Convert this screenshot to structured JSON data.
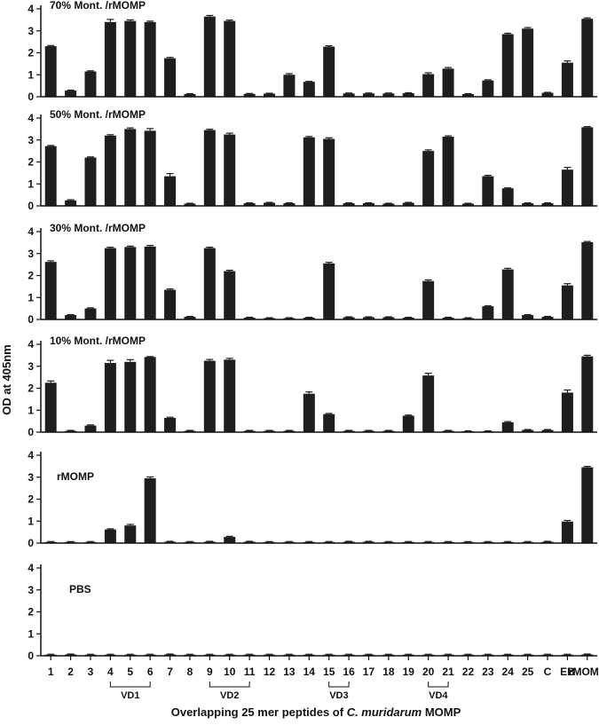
{
  "figure": {
    "ylabel": "OD at 405nm",
    "xlabel_prefix": "Overlapping 25 mer peptides of ",
    "xlabel_italic": "C. muridarum",
    "xlabel_suffix": " MOMP",
    "vd_groups": [
      {
        "label": "VD1",
        "from": "4",
        "to": "6"
      },
      {
        "label": "VD2",
        "from": "9",
        "to": "11"
      },
      {
        "label": "VD3",
        "from": "15",
        "to": "16"
      },
      {
        "label": "VD4",
        "from": "20",
        "to": "21"
      }
    ],
    "colors": {
      "bar": "#1e1e1e",
      "axis": "#111111",
      "panel_bg": "#ffffff"
    }
  },
  "chart_data": [
    {
      "type": "bar",
      "title": "70% Mont. /rMOMP",
      "categories": [
        "1",
        "2",
        "3",
        "4",
        "5",
        "6",
        "7",
        "8",
        "9",
        "10",
        "11",
        "12",
        "13",
        "14",
        "15",
        "16",
        "17",
        "18",
        "19",
        "20",
        "21",
        "22",
        "23",
        "24",
        "25",
        "C",
        "EB",
        "rMOMP"
      ],
      "values": [
        2.3,
        0.28,
        1.15,
        3.4,
        3.45,
        3.4,
        1.75,
        0.12,
        3.65,
        3.45,
        0.13,
        0.14,
        1.0,
        0.68,
        2.28,
        0.15,
        0.15,
        0.15,
        0.16,
        1.03,
        1.28,
        0.12,
        0.74,
        2.85,
        3.1,
        0.18,
        1.55,
        3.55
      ],
      "errors": [
        0.03,
        0.02,
        0.03,
        0.12,
        0.05,
        0.04,
        0.04,
        0.02,
        0.05,
        0.04,
        0.02,
        0.02,
        0.05,
        0.02,
        0.04,
        0.02,
        0.02,
        0.02,
        0.02,
        0.06,
        0.05,
        0.02,
        0.03,
        0.04,
        0.05,
        0.02,
        0.08,
        0.04
      ],
      "ylim": [
        0,
        4
      ],
      "yticks": [
        0,
        1,
        2,
        3,
        4
      ]
    },
    {
      "type": "bar",
      "title": "50% Mont. /rMOMP",
      "categories": [
        "1",
        "2",
        "3",
        "4",
        "5",
        "6",
        "7",
        "8",
        "9",
        "10",
        "11",
        "12",
        "13",
        "14",
        "15",
        "16",
        "17",
        "18",
        "19",
        "20",
        "21",
        "22",
        "23",
        "24",
        "25",
        "C",
        "EB",
        "rMOMP"
      ],
      "values": [
        2.72,
        0.25,
        2.2,
        3.2,
        3.5,
        3.42,
        1.35,
        0.1,
        3.45,
        3.25,
        0.12,
        0.14,
        0.12,
        3.12,
        3.05,
        0.12,
        0.12,
        0.1,
        0.14,
        2.5,
        3.15,
        0.1,
        1.35,
        0.8,
        0.12,
        0.12,
        1.65,
        3.58
      ],
      "errors": [
        0.03,
        0.03,
        0.03,
        0.04,
        0.05,
        0.1,
        0.12,
        0.02,
        0.04,
        0.06,
        0.02,
        0.02,
        0.02,
        0.04,
        0.05,
        0.02,
        0.02,
        0.02,
        0.02,
        0.05,
        0.04,
        0.02,
        0.04,
        0.02,
        0.02,
        0.02,
        0.1,
        0.03
      ],
      "ylim": [
        0,
        4
      ],
      "yticks": [
        0,
        1,
        2,
        3,
        4
      ]
    },
    {
      "type": "bar",
      "title": "30% Mont. /rMOMP",
      "categories": [
        "1",
        "2",
        "3",
        "4",
        "5",
        "6",
        "7",
        "8",
        "9",
        "10",
        "11",
        "12",
        "13",
        "14",
        "15",
        "16",
        "17",
        "18",
        "19",
        "20",
        "21",
        "22",
        "23",
        "24",
        "25",
        "C",
        "EB",
        "rMOMP"
      ],
      "values": [
        2.62,
        0.2,
        0.5,
        3.25,
        3.3,
        3.32,
        1.35,
        0.12,
        3.25,
        2.2,
        0.08,
        0.06,
        0.06,
        0.08,
        2.55,
        0.1,
        0.1,
        0.1,
        0.08,
        1.75,
        0.08,
        0.06,
        0.6,
        2.28,
        0.2,
        0.12,
        1.55,
        3.52
      ],
      "errors": [
        0.05,
        0.02,
        0.03,
        0.04,
        0.04,
        0.05,
        0.04,
        0.02,
        0.04,
        0.04,
        0.02,
        0.02,
        0.02,
        0.02,
        0.05,
        0.02,
        0.02,
        0.02,
        0.02,
        0.05,
        0.02,
        0.02,
        0.02,
        0.05,
        0.02,
        0.02,
        0.08,
        0.03
      ],
      "ylim": [
        0,
        4
      ],
      "yticks": [
        0,
        1,
        2,
        3,
        4
      ]
    },
    {
      "type": "bar",
      "title": "10% Mont. /rMOMP",
      "categories": [
        "1",
        "2",
        "3",
        "4",
        "5",
        "6",
        "7",
        "8",
        "9",
        "10",
        "11",
        "12",
        "13",
        "14",
        "15",
        "16",
        "17",
        "18",
        "19",
        "20",
        "21",
        "22",
        "23",
        "24",
        "25",
        "C",
        "EB",
        "rMOMP"
      ],
      "values": [
        2.25,
        0.06,
        0.3,
        3.15,
        3.2,
        3.42,
        0.65,
        0.06,
        3.25,
        3.3,
        0.06,
        0.06,
        0.06,
        1.75,
        0.82,
        0.06,
        0.06,
        0.06,
        0.75,
        2.58,
        0.06,
        0.04,
        0.04,
        0.45,
        0.1,
        0.1,
        1.8,
        3.45
      ],
      "errors": [
        0.08,
        0.02,
        0.03,
        0.12,
        0.1,
        0.02,
        0.03,
        0.02,
        0.06,
        0.06,
        0.02,
        0.02,
        0.02,
        0.08,
        0.03,
        0.02,
        0.02,
        0.02,
        0.03,
        0.1,
        0.02,
        0.02,
        0.02,
        0.03,
        0.02,
        0.02,
        0.12,
        0.05
      ],
      "ylim": [
        0,
        4
      ],
      "yticks": [
        0,
        1,
        2,
        3,
        4
      ]
    },
    {
      "type": "bar",
      "title": "rMOMP",
      "categories": [
        "1",
        "2",
        "3",
        "4",
        "5",
        "6",
        "7",
        "8",
        "9",
        "10",
        "11",
        "12",
        "13",
        "14",
        "15",
        "16",
        "17",
        "18",
        "19",
        "20",
        "21",
        "22",
        "23",
        "24",
        "25",
        "C",
        "EB",
        "rMOMP"
      ],
      "values": [
        0.05,
        0.05,
        0.05,
        0.62,
        0.8,
        2.95,
        0.06,
        0.05,
        0.06,
        0.28,
        0.06,
        0.05,
        0.05,
        0.05,
        0.05,
        0.06,
        0.06,
        0.05,
        0.05,
        0.05,
        0.05,
        0.05,
        0.05,
        0.05,
        0.05,
        0.06,
        0.98,
        3.45
      ],
      "errors": [
        0.02,
        0.02,
        0.02,
        0.03,
        0.05,
        0.06,
        0.02,
        0.02,
        0.02,
        0.03,
        0.02,
        0.02,
        0.02,
        0.02,
        0.02,
        0.02,
        0.02,
        0.02,
        0.02,
        0.02,
        0.02,
        0.02,
        0.02,
        0.02,
        0.02,
        0.02,
        0.05,
        0.04
      ],
      "ylim": [
        0,
        4
      ],
      "yticks": [
        0,
        1,
        2,
        3,
        4
      ]
    },
    {
      "type": "bar",
      "title": "PBS",
      "categories": [
        "1",
        "2",
        "3",
        "4",
        "5",
        "6",
        "7",
        "8",
        "9",
        "10",
        "11",
        "12",
        "13",
        "14",
        "15",
        "16",
        "17",
        "18",
        "19",
        "20",
        "21",
        "22",
        "23",
        "24",
        "25",
        "C",
        "EB",
        "rMOMP"
      ],
      "values": [
        0.05,
        0.06,
        0.05,
        0.05,
        0.05,
        0.05,
        0.06,
        0.05,
        0.05,
        0.05,
        0.05,
        0.05,
        0.05,
        0.05,
        0.05,
        0.05,
        0.05,
        0.05,
        0.05,
        0.05,
        0.05,
        0.05,
        0.05,
        0.05,
        0.05,
        0.05,
        0.05,
        0.06
      ],
      "errors": [
        0.02,
        0.02,
        0.02,
        0.02,
        0.02,
        0.02,
        0.02,
        0.02,
        0.02,
        0.02,
        0.02,
        0.02,
        0.02,
        0.02,
        0.02,
        0.02,
        0.02,
        0.02,
        0.02,
        0.02,
        0.02,
        0.02,
        0.02,
        0.02,
        0.02,
        0.02,
        0.02,
        0.02
      ],
      "ylim": [
        0,
        4
      ],
      "yticks": [
        0,
        1,
        2,
        3,
        4
      ]
    }
  ]
}
